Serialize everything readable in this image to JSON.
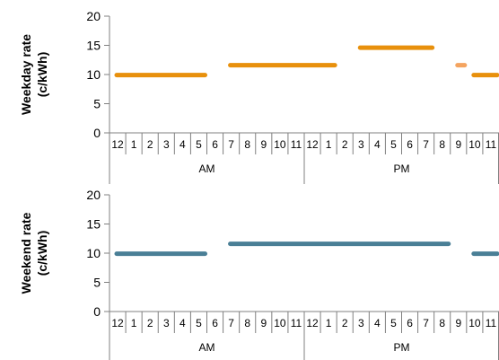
{
  "chart_data": [
    {
      "type": "line",
      "ylabel_lines": [
        "Weekday rate",
        "(c/kWh)"
      ],
      "ylim": [
        0,
        20
      ],
      "yticks": [
        0,
        5,
        10,
        15,
        20
      ],
      "hour_labels": [
        "12",
        "1",
        "2",
        "3",
        "4",
        "5",
        "6",
        "7",
        "8",
        "9",
        "10",
        "11",
        "12",
        "1",
        "2",
        "3",
        "4",
        "5",
        "6",
        "7",
        "8",
        "9",
        "10",
        "11"
      ],
      "periods": [
        "AM",
        "PM"
      ],
      "segments": [
        {
          "start_hour": 0,
          "end_hour": 6,
          "rate": 9.9,
          "color": "#E8900C"
        },
        {
          "start_hour": 7,
          "end_hour": 14,
          "rate": 11.6,
          "color": "#E8900C"
        },
        {
          "start_hour": 15,
          "end_hour": 20,
          "rate": 14.6,
          "color": "#E8900C"
        },
        {
          "start_hour": 21,
          "end_hour": 22,
          "rate": 11.6,
          "color": "#F4A460"
        },
        {
          "start_hour": 22,
          "end_hour": 24,
          "rate": 9.9,
          "color": "#E8900C"
        }
      ]
    },
    {
      "type": "line",
      "ylabel_lines": [
        "Weekend rate",
        "(c/kWh)"
      ],
      "ylim": [
        0,
        20
      ],
      "yticks": [
        0,
        5,
        10,
        15,
        20
      ],
      "hour_labels": [
        "12",
        "1",
        "2",
        "3",
        "4",
        "5",
        "6",
        "7",
        "8",
        "9",
        "10",
        "11",
        "12",
        "1",
        "2",
        "3",
        "4",
        "5",
        "6",
        "7",
        "8",
        "9",
        "10",
        "11"
      ],
      "periods": [
        "AM",
        "PM"
      ],
      "segments": [
        {
          "start_hour": 0,
          "end_hour": 6,
          "rate": 9.9,
          "color": "#4A7F96"
        },
        {
          "start_hour": 7,
          "end_hour": 21,
          "rate": 11.6,
          "color": "#4A7F96"
        },
        {
          "start_hour": 22,
          "end_hour": 24,
          "rate": 9.9,
          "color": "#4A7F96"
        }
      ]
    }
  ]
}
